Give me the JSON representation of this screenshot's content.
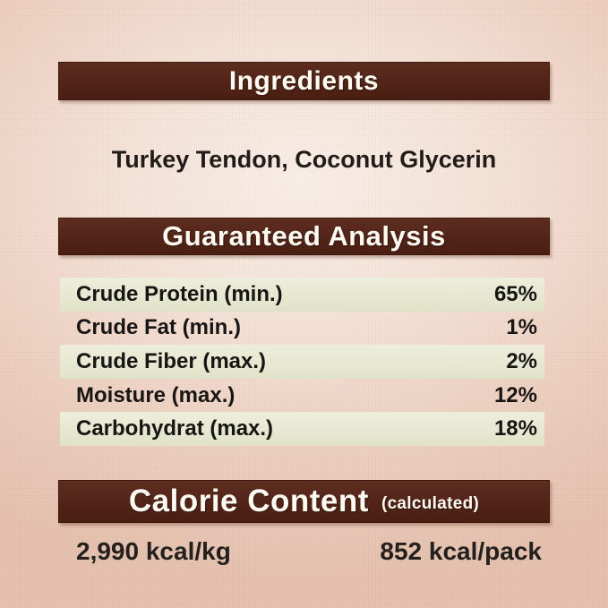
{
  "ingredients": {
    "title": "Ingredients",
    "list": "Turkey Tendon, Coconut Glycerin"
  },
  "guaranteed_analysis": {
    "title": "Guaranteed Analysis",
    "rows": [
      {
        "label": "Crude Protein (min.)",
        "value": "65%"
      },
      {
        "label": "Crude Fat (min.)",
        "value": "1%"
      },
      {
        "label": "Crude Fiber (max.)",
        "value": "2%"
      },
      {
        "label": "Moisture (max.)",
        "value": "12%"
      },
      {
        "label": "Carbohydrat (max.)",
        "value": "18%"
      }
    ]
  },
  "calorie_content": {
    "title": "Calorie Content",
    "subtitle": "(calculated)",
    "per_kg": "2,990 kcal/kg",
    "per_pack": "852 kcal/pack"
  },
  "colors": {
    "header_bar": "#522418",
    "header_text": "#fdfaf2",
    "row_band": "#e7e8d2",
    "background_center": "#faf1ea",
    "background_edge": "#e5c1ae",
    "body_text": "#1b1816"
  }
}
